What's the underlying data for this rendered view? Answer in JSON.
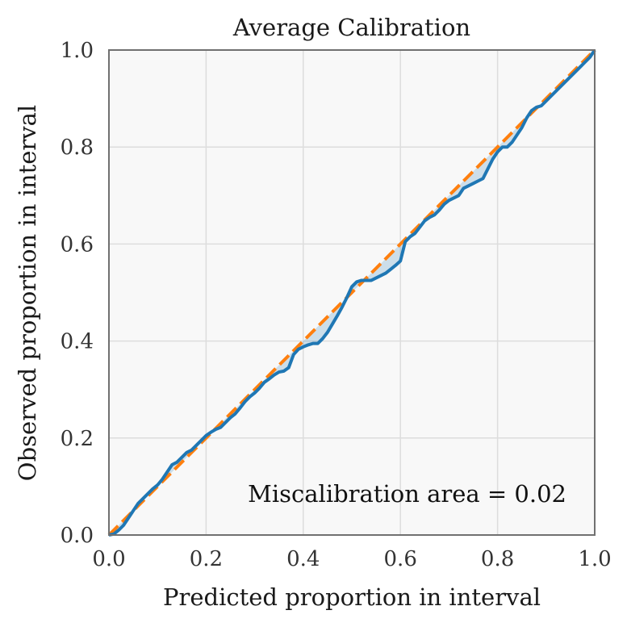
{
  "chart_data": {
    "type": "line",
    "title": "Average Calibration",
    "xlabel": "Predicted proportion in interval",
    "ylabel": "Observed proportion in interval",
    "xlim": [
      0.0,
      1.0
    ],
    "ylim": [
      0.0,
      1.0
    ],
    "xticks": [
      "0.0",
      "0.2",
      "0.4",
      "0.6",
      "0.8",
      "1.0"
    ],
    "yticks": [
      "0.0",
      "0.2",
      "0.4",
      "0.6",
      "0.8",
      "1.0"
    ],
    "grid": true,
    "annotation": "Miscalibration area = 0.02",
    "series": [
      {
        "role": "calibration curve",
        "color": "#1f77b4",
        "x": [
          0.0,
          0.01,
          0.02,
          0.03,
          0.04,
          0.05,
          0.06,
          0.07,
          0.08,
          0.09,
          0.1,
          0.11,
          0.12,
          0.13,
          0.14,
          0.15,
          0.16,
          0.17,
          0.18,
          0.19,
          0.2,
          0.21,
          0.22,
          0.23,
          0.24,
          0.25,
          0.26,
          0.27,
          0.28,
          0.29,
          0.3,
          0.31,
          0.32,
          0.33,
          0.34,
          0.35,
          0.36,
          0.37,
          0.38,
          0.39,
          0.4,
          0.41,
          0.42,
          0.43,
          0.44,
          0.45,
          0.46,
          0.47,
          0.48,
          0.49,
          0.5,
          0.51,
          0.52,
          0.53,
          0.54,
          0.55,
          0.56,
          0.57,
          0.58,
          0.59,
          0.6,
          0.61,
          0.62,
          0.63,
          0.64,
          0.65,
          0.66,
          0.67,
          0.68,
          0.69,
          0.7,
          0.71,
          0.72,
          0.73,
          0.74,
          0.75,
          0.76,
          0.77,
          0.78,
          0.79,
          0.8,
          0.81,
          0.82,
          0.83,
          0.84,
          0.85,
          0.86,
          0.87,
          0.88,
          0.89,
          0.9,
          0.91,
          0.92,
          0.93,
          0.94,
          0.95,
          0.96,
          0.97,
          0.98,
          0.99,
          1.0
        ],
        "y": [
          0.0,
          0.002,
          0.01,
          0.02,
          0.035,
          0.05,
          0.065,
          0.075,
          0.085,
          0.095,
          0.103,
          0.115,
          0.13,
          0.145,
          0.15,
          0.16,
          0.17,
          0.175,
          0.185,
          0.195,
          0.205,
          0.212,
          0.218,
          0.222,
          0.232,
          0.242,
          0.25,
          0.262,
          0.275,
          0.285,
          0.293,
          0.303,
          0.315,
          0.322,
          0.33,
          0.336,
          0.338,
          0.345,
          0.372,
          0.383,
          0.388,
          0.392,
          0.395,
          0.395,
          0.405,
          0.418,
          0.435,
          0.452,
          0.47,
          0.49,
          0.512,
          0.522,
          0.525,
          0.525,
          0.525,
          0.53,
          0.535,
          0.54,
          0.548,
          0.556,
          0.565,
          0.605,
          0.615,
          0.622,
          0.635,
          0.648,
          0.655,
          0.66,
          0.67,
          0.682,
          0.69,
          0.695,
          0.7,
          0.715,
          0.72,
          0.725,
          0.73,
          0.735,
          0.755,
          0.775,
          0.79,
          0.8,
          0.8,
          0.81,
          0.825,
          0.84,
          0.86,
          0.875,
          0.882,
          0.885,
          0.895,
          0.905,
          0.915,
          0.925,
          0.935,
          0.945,
          0.955,
          0.965,
          0.975,
          0.985,
          1.0
        ]
      },
      {
        "role": "ideal calibration",
        "color": "#ff7f0e",
        "x": [
          0.0,
          1.0
        ],
        "y": [
          0.0,
          1.0
        ]
      }
    ]
  }
}
